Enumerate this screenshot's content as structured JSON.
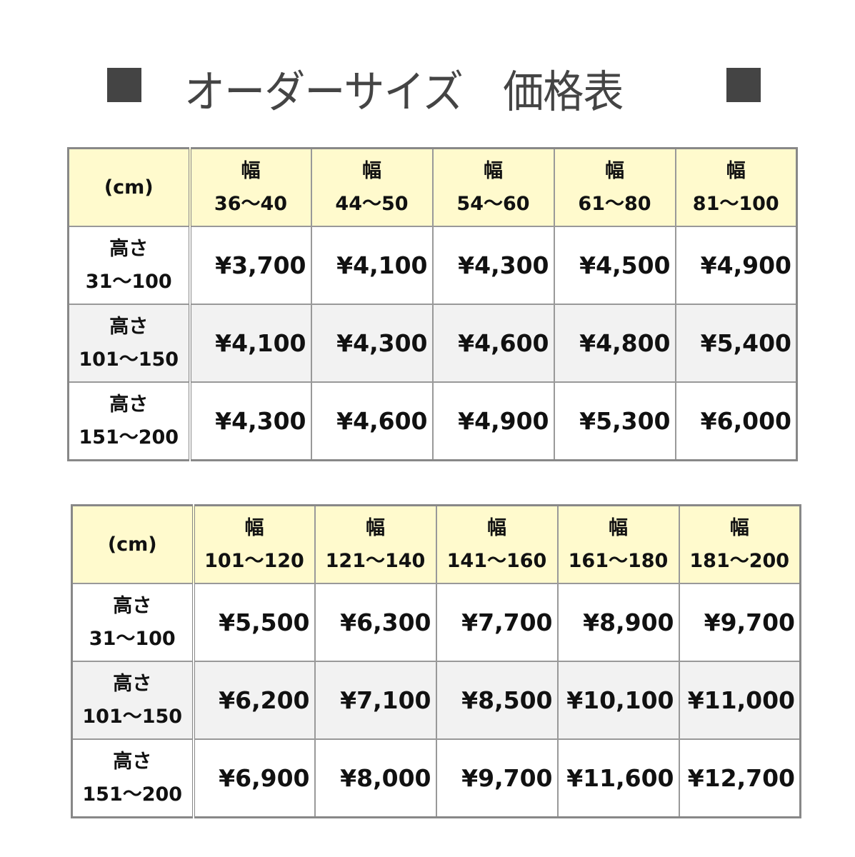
{
  "title": "オーダーサイズ　価格表",
  "icons": {
    "left": "black-square-icon",
    "right": "black-square-icon"
  },
  "colors": {
    "header_bg": "#fffacd",
    "alt_row_bg": "#f2f2f2",
    "border": "#888888",
    "title": "#444444"
  },
  "tables": [
    {
      "corner": "(cm)",
      "width_label": "幅",
      "columns": [
        "36～40",
        "44～50",
        "54～60",
        "61～80",
        "81～100"
      ],
      "rows": [
        {
          "label": "高さ",
          "range": "31～100",
          "prices": [
            "¥3,700",
            "¥4,100",
            "¥4,300",
            "¥4,500",
            "¥4,900"
          ]
        },
        {
          "label": "高さ",
          "range": "101～150",
          "prices": [
            "¥4,100",
            "¥4,300",
            "¥4,600",
            "¥4,800",
            "¥5,400"
          ]
        },
        {
          "label": "高さ",
          "range": "151～200",
          "prices": [
            "¥4,300",
            "¥4,600",
            "¥4,900",
            "¥5,300",
            "¥6,000"
          ]
        }
      ]
    },
    {
      "corner": "(cm)",
      "width_label": "幅",
      "columns": [
        "101～120",
        "121～140",
        "141～160",
        "161～180",
        "181～200"
      ],
      "rows": [
        {
          "label": "高さ",
          "range": "31～100",
          "prices": [
            "¥5,500",
            "¥6,300",
            "¥7,700",
            "¥8,900",
            "¥9,700"
          ]
        },
        {
          "label": "高さ",
          "range": "101～150",
          "prices": [
            "¥6,200",
            "¥7,100",
            "¥8,500",
            "¥10,100",
            "¥11,000"
          ]
        },
        {
          "label": "高さ",
          "range": "151～200",
          "prices": [
            "¥6,900",
            "¥8,000",
            "¥9,700",
            "¥11,600",
            "¥12,700"
          ]
        }
      ]
    }
  ]
}
